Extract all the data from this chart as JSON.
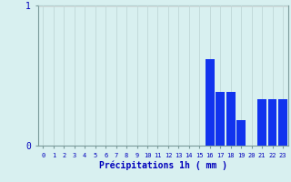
{
  "hours": [
    0,
    1,
    2,
    3,
    4,
    5,
    6,
    7,
    8,
    9,
    10,
    11,
    12,
    13,
    14,
    15,
    16,
    17,
    18,
    19,
    20,
    21,
    22,
    23
  ],
  "values": [
    0,
    0,
    0,
    0,
    0,
    0,
    0,
    0,
    0,
    0,
    0,
    0,
    0,
    0,
    0,
    0,
    0.62,
    0.38,
    0.38,
    0.18,
    0,
    0.33,
    0.33,
    0.33
  ],
  "bar_color": "#1133ee",
  "background_color": "#d8f0f0",
  "grid_color_v": "#c0d8d8",
  "grid_color_h": "#c0d8d8",
  "xlabel": "Précipitations 1h ( mm )",
  "ylim": [
    0,
    1.0
  ],
  "ytick_vals": [
    0,
    1
  ],
  "ytick_labels": [
    "0",
    "1"
  ],
  "xlim": [
    -0.5,
    23.5
  ],
  "xlabel_color": "#0000bb",
  "tick_color": "#0000bb",
  "axis_color": "#7a9a9a",
  "red_line_y": 1.0,
  "xlabel_fontsize": 7,
  "xtick_fontsize": 5,
  "ytick_fontsize": 7
}
